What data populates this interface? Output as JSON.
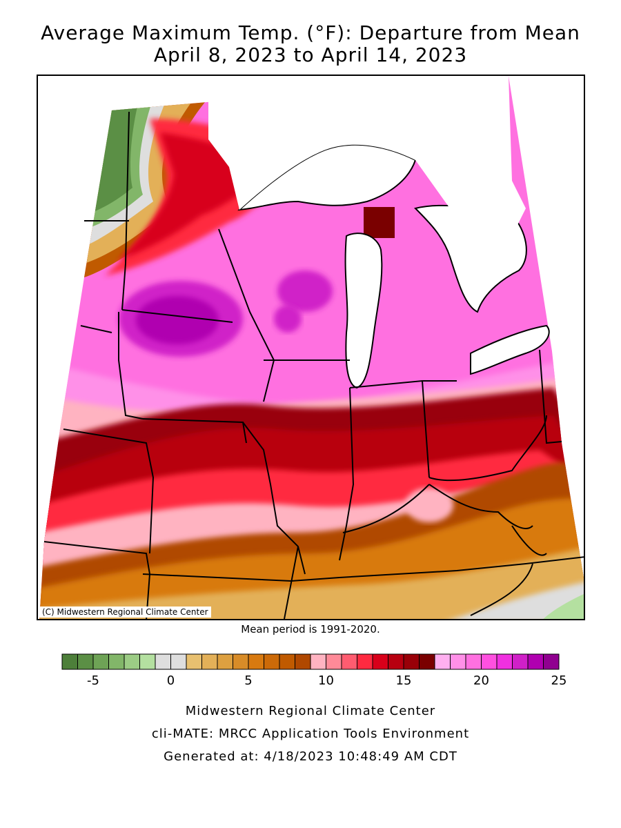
{
  "title_line1": "Average Maximum Temp. (°F): Departure from Mean",
  "title_line2": "April 8, 2023 to April 14, 2023",
  "copyright": "(C) Midwestern Regional Climate Center",
  "mean_period": "Mean period is 1991-2020.",
  "legend": {
    "min": -7,
    "max": 25,
    "step": 1,
    "tick_labels": [
      "-5",
      "0",
      "5",
      "10",
      "15",
      "20",
      "25"
    ],
    "tick_values": [
      -5,
      0,
      5,
      10,
      15,
      20,
      25
    ],
    "colors": [
      "#4d7f3a",
      "#5b8f45",
      "#6ea356",
      "#82b669",
      "#9ccc85",
      "#b4e0a0",
      "#dedede",
      "#dedede",
      "#e8c070",
      "#e3b058",
      "#dda040",
      "#d88c28",
      "#d87a10",
      "#cc6a08",
      "#c05a00",
      "#b04800",
      "#ffb3c1",
      "#ff8a98",
      "#ff5c70",
      "#ff2a40",
      "#d8001a",
      "#b80010",
      "#990008",
      "#7a0000",
      "#ffb0f0",
      "#ff90e8",
      "#ff70e0",
      "#ff50e0",
      "#f030e0",
      "#d020c8",
      "#b000b0",
      "#900090"
    ]
  },
  "footer_line1": "Midwestern Regional Climate Center",
  "footer_line2": "cli-MATE: MRCC Application Tools Environment",
  "footer_line3": "Generated at: 4/18/2023 10:48:49 AM CDT"
}
